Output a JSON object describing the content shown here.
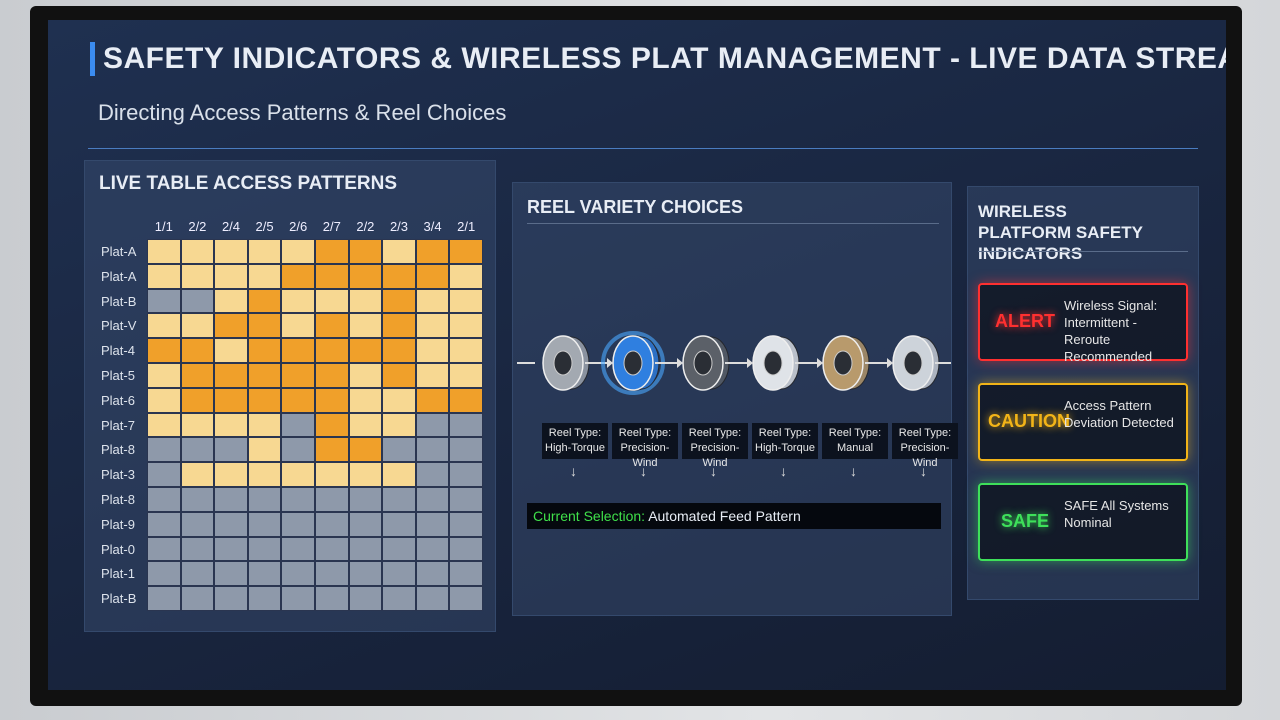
{
  "header": {
    "title": "SAFETY INDICATORS & WIRELESS PLAT MANAGEMENT - LIVE DATA STREAM",
    "subtitle": "Directing Access Patterns & Reel Choices"
  },
  "access_table": {
    "title": "LIVE TABLE ACCESS PATTERNS",
    "columns": [
      "1/1",
      "2/2",
      "2/4",
      "2/5",
      "2/6",
      "2/7",
      "2/2",
      "2/3",
      "3/4",
      "2/1"
    ],
    "palette": [
      "#8e99aa",
      "#f7d892",
      "#f0a02a"
    ],
    "rows": [
      {
        "label": "Plat-A",
        "levels": [
          1,
          1,
          1,
          1,
          1,
          2,
          2,
          1,
          2,
          2
        ]
      },
      {
        "label": "Plat-A",
        "levels": [
          1,
          1,
          1,
          1,
          2,
          2,
          2,
          2,
          2,
          1
        ]
      },
      {
        "label": "Plat-B",
        "levels": [
          0,
          0,
          1,
          2,
          1,
          1,
          1,
          2,
          1,
          1
        ]
      },
      {
        "label": "Plat-V",
        "levels": [
          1,
          1,
          2,
          2,
          1,
          2,
          1,
          2,
          1,
          1
        ]
      },
      {
        "label": "Plat-4",
        "levels": [
          2,
          2,
          1,
          2,
          2,
          2,
          2,
          2,
          1,
          1
        ]
      },
      {
        "label": "Plat-5",
        "levels": [
          1,
          2,
          2,
          2,
          2,
          2,
          1,
          2,
          1,
          1
        ]
      },
      {
        "label": "Plat-6",
        "levels": [
          1,
          2,
          2,
          2,
          2,
          2,
          1,
          1,
          2,
          2
        ]
      },
      {
        "label": "Plat-7",
        "levels": [
          1,
          1,
          1,
          1,
          0,
          2,
          1,
          1,
          0,
          0
        ]
      },
      {
        "label": "Plat-8",
        "levels": [
          0,
          0,
          0,
          1,
          0,
          2,
          2,
          0,
          0,
          0
        ]
      },
      {
        "label": "Plat-3",
        "levels": [
          0,
          1,
          1,
          1,
          1,
          1,
          1,
          1,
          0,
          0
        ]
      },
      {
        "label": "Plat-8",
        "levels": [
          0,
          0,
          0,
          0,
          0,
          0,
          0,
          0,
          0,
          0
        ]
      },
      {
        "label": "Plat-9",
        "levels": [
          0,
          0,
          0,
          0,
          0,
          0,
          0,
          0,
          0,
          0
        ]
      },
      {
        "label": "Plat-0",
        "levels": [
          0,
          0,
          0,
          0,
          0,
          0,
          0,
          0,
          0,
          0
        ]
      },
      {
        "label": "Plat-1",
        "levels": [
          0,
          0,
          0,
          0,
          0,
          0,
          0,
          0,
          0,
          0
        ]
      },
      {
        "label": "Plat-B",
        "levels": [
          0,
          0,
          0,
          0,
          0,
          0,
          0,
          0,
          0,
          0
        ]
      }
    ]
  },
  "reels": {
    "title": "REEL VARIETY CHOICES",
    "items": [
      {
        "label": "Reel Type:",
        "kind": "High-Torque",
        "color": "#a3a9b1"
      },
      {
        "label": "Reel Type:",
        "kind": "Precision-Wind",
        "color": "#2f7fe0"
      },
      {
        "label": "Reel Type:",
        "kind": "Precision-Wind",
        "color": "#5b6068"
      },
      {
        "label": "Reel Type:",
        "kind": "High-Torque",
        "color": "#dfe3e8"
      },
      {
        "label": "Reel Type:",
        "kind": "Manual",
        "color": "#b89a6c"
      },
      {
        "label": "Reel Type:",
        "kind": "Precision-Wind",
        "color": "#cdd3da"
      }
    ],
    "selected": 1,
    "selection_label": "Current Selection:",
    "selection_value": "Automated Feed Pattern"
  },
  "safety": {
    "title": "WIRELESS PLATFORM SAFETY INDICATORS",
    "indicators": [
      {
        "status": "ALERT",
        "message": "Wireless Signal: Intermittent - Reroute Recommended",
        "color": "#ff3030"
      },
      {
        "status": "CAUTION",
        "message": "Access Pattern Deviation Detected",
        "color": "#f2b418"
      },
      {
        "status": "SAFE",
        "message": "SAFE All Systems Nominal",
        "color": "#3ee05a"
      }
    ]
  }
}
